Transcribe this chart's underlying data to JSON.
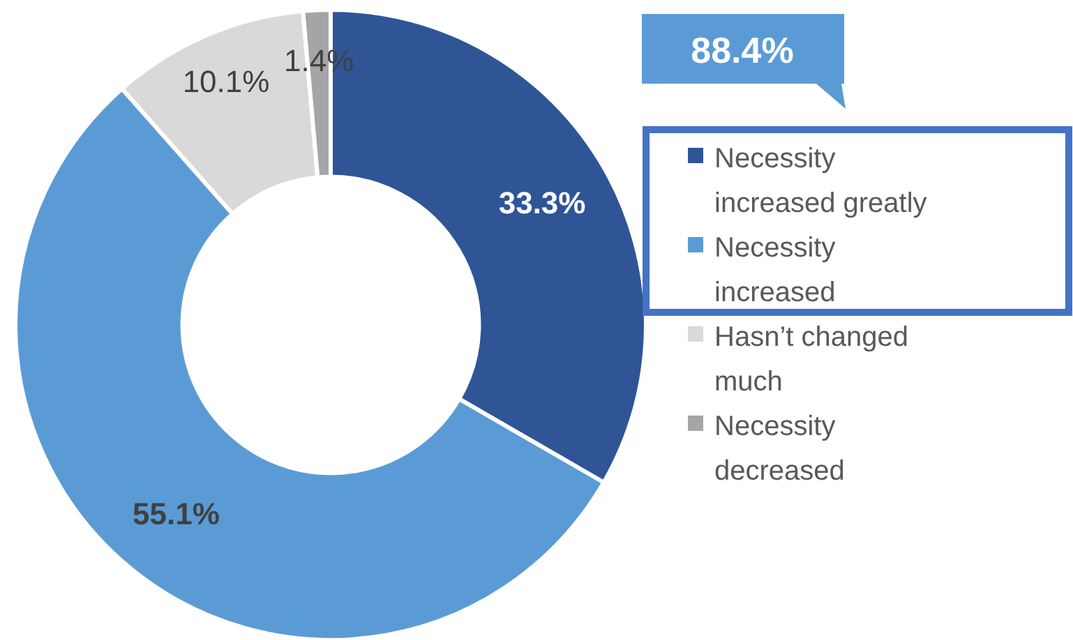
{
  "chart_data": {
    "type": "donut",
    "categories": [
      "Necessity increased greatly",
      "Necessity increased",
      "Hasn’t changed much",
      "Necessity decreased"
    ],
    "values": [
      33.3,
      55.1,
      10.1,
      1.4
    ],
    "colors": [
      "#2f5597",
      "#5b9bd5",
      "#d9d9d9",
      "#a5a5a5"
    ],
    "value_labels": [
      "33.3%",
      "55.1%",
      "10.1%",
      "1.4%"
    ],
    "annotations": [
      "88.4%"
    ],
    "legend": "right"
  }
}
